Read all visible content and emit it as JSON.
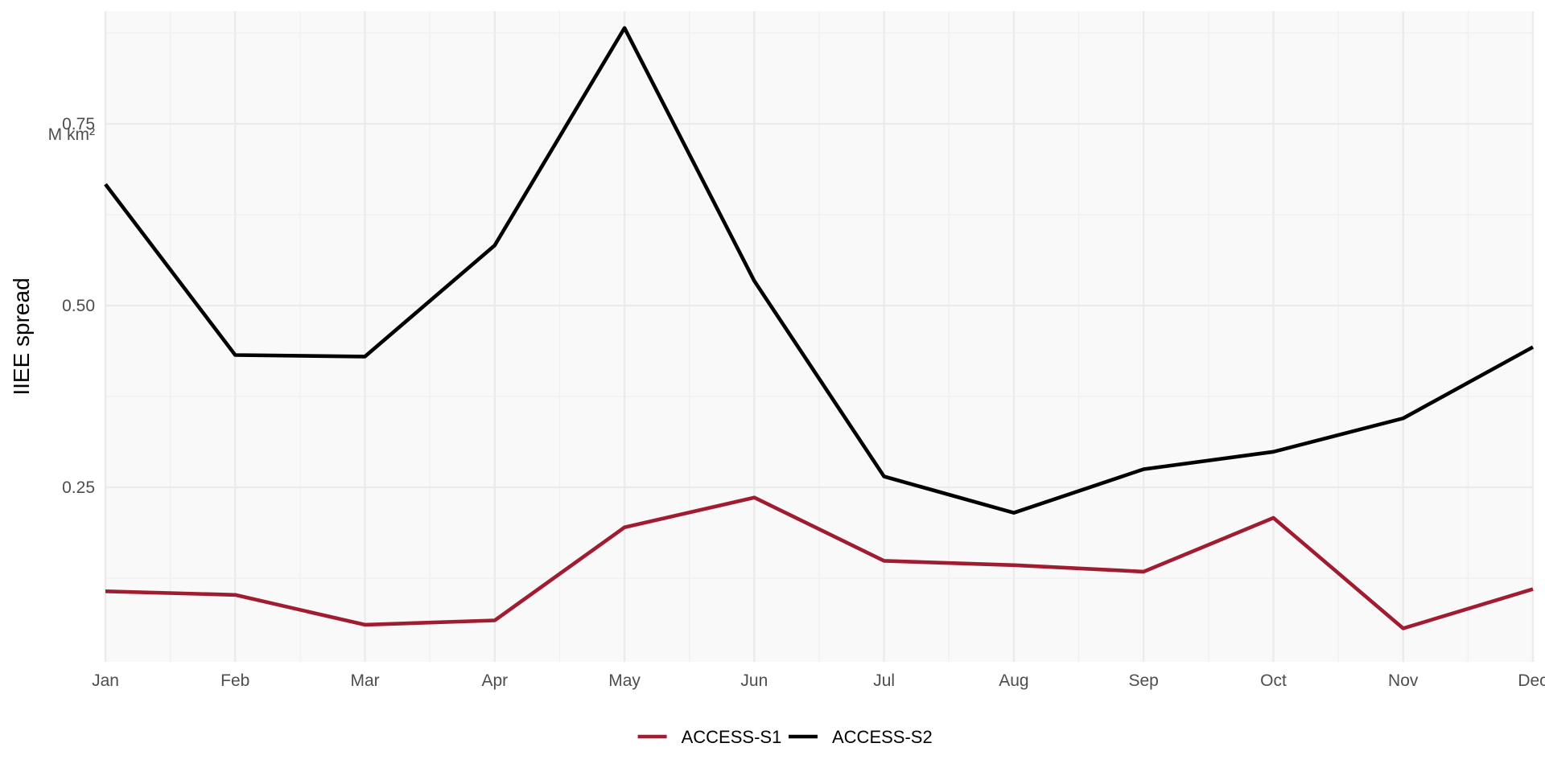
{
  "chart_data": {
    "type": "line",
    "title": "",
    "xlabel": "",
    "ylabel": "IIEE spread",
    "y_unit_label": "M km²",
    "categories": [
      "Jan",
      "Feb",
      "Mar",
      "Apr",
      "May",
      "Jun",
      "Jul",
      "Aug",
      "Sep",
      "Oct",
      "Nov",
      "Dec"
    ],
    "y_ticks": [
      {
        "value": 0.25,
        "label": "0.25"
      },
      {
        "value": 0.5,
        "label": "0.50"
      },
      {
        "value": 0.75,
        "label": "0.75"
      }
    ],
    "ylim": [
      0.01,
      0.905
    ],
    "grid": true,
    "legend_position": "bottom",
    "series": [
      {
        "name": "ACCESS-S1",
        "color": "#a01c30",
        "values": [
          0.107,
          0.102,
          0.061,
          0.067,
          0.195,
          0.236,
          0.149,
          0.143,
          0.134,
          0.208,
          0.056,
          0.11
        ]
      },
      {
        "name": "ACCESS-S2",
        "color": "#000000",
        "values": [
          0.667,
          0.432,
          0.43,
          0.583,
          0.882,
          0.534,
          0.265,
          0.215,
          0.275,
          0.299,
          0.345,
          0.443
        ]
      }
    ],
    "background_color": "#f9f9f9",
    "grid_major_color": "#ebebeb",
    "grid_minor_color": "#f0f0f0"
  }
}
